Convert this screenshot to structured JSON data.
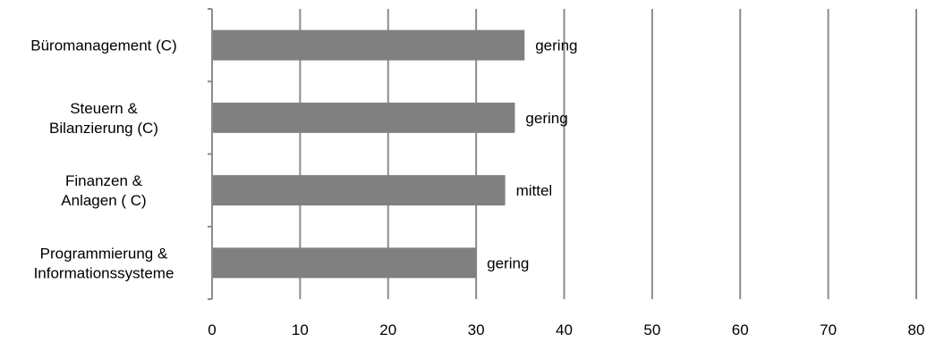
{
  "chart_data": {
    "type": "bar",
    "orientation": "horizontal",
    "categories": [
      [
        "Büromanagement (C)"
      ],
      [
        "Steuern &",
        "Bilanzierung (C)"
      ],
      [
        "Finanzen &",
        "Anlagen ( C)"
      ],
      [
        "Programmierung &",
        "Informationssysteme"
      ]
    ],
    "values": [
      35.5,
      34.4,
      33.3,
      30.0
    ],
    "data_labels": [
      "gering",
      "gering",
      "mittel",
      "gering"
    ],
    "xlim": [
      0,
      80
    ],
    "xticks": [
      0,
      10,
      20,
      30,
      40,
      50,
      60,
      70,
      80
    ],
    "title": "",
    "xlabel": "",
    "ylabel": "",
    "grid": true,
    "legend": "none",
    "colors": {
      "bar": "#808080",
      "grid": "#8c8c8c",
      "text": "#000000"
    }
  }
}
